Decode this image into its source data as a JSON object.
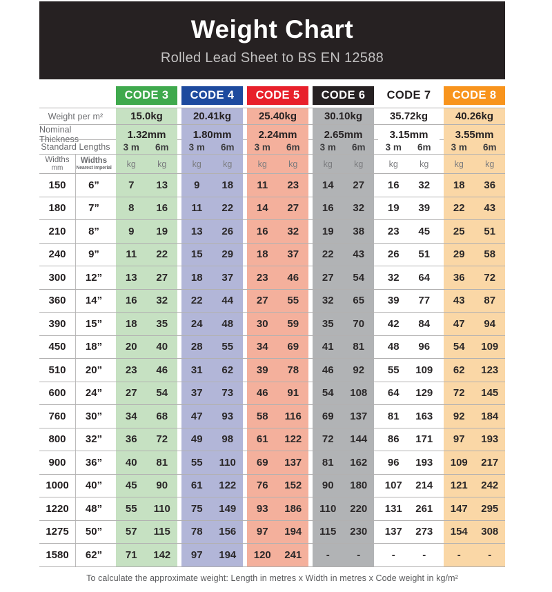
{
  "header": {
    "title": "Weight Chart",
    "subtitle": "Rolled Lead Sheet to BS EN 12588"
  },
  "labels": {
    "weight_per_m2": "Weight per m²",
    "nominal_thickness": "Nominal Thickness",
    "standard_lengths": "Standard Lengths",
    "widths_mm_line1": "Widths",
    "widths_mm_line2": "mm",
    "widths_imperial_line1": "Widths",
    "widths_imperial_line2": "Nearest Imperial",
    "kg_unit": "kg"
  },
  "footer": {
    "note": "To calculate the approximate weight: Length in metres x Width in metres x Code weight in kg/m²"
  },
  "chart_data": {
    "type": "table",
    "title": "Weight Chart",
    "subtitle": "Rolled Lead Sheet to BS EN 12588",
    "footnote": "To calculate the approximate weight: Length in metres x Width in metres x Code weight in kg/m²",
    "codes": [
      {
        "label": "CODE 3",
        "weight_per_m2": "15.0kg",
        "nominal_thickness": "1.32mm",
        "standard_lengths": [
          "3 m",
          "6m"
        ],
        "colors": {
          "header_bg": "#3fa94d",
          "header_text": "#ffffff",
          "body_bg": "#c6e1c2"
        }
      },
      {
        "label": "CODE 4",
        "weight_per_m2": "20.41kg",
        "nominal_thickness": "1.80mm",
        "standard_lengths": [
          "3 m",
          "6m"
        ],
        "colors": {
          "header_bg": "#1d4a9e",
          "header_text": "#ffffff",
          "body_bg": "#b2b6d8"
        }
      },
      {
        "label": "CODE 5",
        "weight_per_m2": "25.40kg",
        "nominal_thickness": "2.24mm",
        "standard_lengths": [
          "3 m",
          "6m"
        ],
        "colors": {
          "header_bg": "#e8202b",
          "header_text": "#ffffff",
          "body_bg": "#f4b09c"
        }
      },
      {
        "label": "CODE 6",
        "weight_per_m2": "30.10kg",
        "nominal_thickness": "2.65mm",
        "standard_lengths": [
          "3 m",
          "6m"
        ],
        "colors": {
          "header_bg": "#262122",
          "header_text": "#ffffff",
          "body_bg": "#b1b3b5"
        }
      },
      {
        "label": "CODE 7",
        "weight_per_m2": "35.72kg",
        "nominal_thickness": "3.15mm",
        "standard_lengths": [
          "3 m",
          "6m"
        ],
        "colors": {
          "header_bg": "#ffffff",
          "header_text": "#231f20",
          "body_bg": "#ffffff"
        }
      },
      {
        "label": "CODE 8",
        "weight_per_m2": "40.26kg",
        "nominal_thickness": "3.55mm",
        "standard_lengths": [
          "3 m",
          "6m"
        ],
        "colors": {
          "header_bg": "#f8941d",
          "header_text": "#ffffff",
          "body_bg": "#fad7a6"
        }
      }
    ],
    "rows": [
      {
        "width_mm": "150",
        "width_imperial": "6”",
        "kg": [
          [
            "7",
            "13"
          ],
          [
            "9",
            "18"
          ],
          [
            "11",
            "23"
          ],
          [
            "14",
            "27"
          ],
          [
            "16",
            "32"
          ],
          [
            "18",
            "36"
          ]
        ]
      },
      {
        "width_mm": "180",
        "width_imperial": "7”",
        "kg": [
          [
            "8",
            "16"
          ],
          [
            "11",
            "22"
          ],
          [
            "14",
            "27"
          ],
          [
            "16",
            "32"
          ],
          [
            "19",
            "39"
          ],
          [
            "22",
            "43"
          ]
        ]
      },
      {
        "width_mm": "210",
        "width_imperial": "8”",
        "kg": [
          [
            "9",
            "19"
          ],
          [
            "13",
            "26"
          ],
          [
            "16",
            "32"
          ],
          [
            "19",
            "38"
          ],
          [
            "23",
            "45"
          ],
          [
            "25",
            "51"
          ]
        ]
      },
      {
        "width_mm": "240",
        "width_imperial": "9”",
        "kg": [
          [
            "11",
            "22"
          ],
          [
            "15",
            "29"
          ],
          [
            "18",
            "37"
          ],
          [
            "22",
            "43"
          ],
          [
            "26",
            "51"
          ],
          [
            "29",
            "58"
          ]
        ]
      },
      {
        "width_mm": "300",
        "width_imperial": "12”",
        "kg": [
          [
            "13",
            "27"
          ],
          [
            "18",
            "37"
          ],
          [
            "23",
            "46"
          ],
          [
            "27",
            "54"
          ],
          [
            "32",
            "64"
          ],
          [
            "36",
            "72"
          ]
        ]
      },
      {
        "width_mm": "360",
        "width_imperial": "14”",
        "kg": [
          [
            "16",
            "32"
          ],
          [
            "22",
            "44"
          ],
          [
            "27",
            "55"
          ],
          [
            "32",
            "65"
          ],
          [
            "39",
            "77"
          ],
          [
            "43",
            "87"
          ]
        ]
      },
      {
        "width_mm": "390",
        "width_imperial": "15”",
        "kg": [
          [
            "18",
            "35"
          ],
          [
            "24",
            "48"
          ],
          [
            "30",
            "59"
          ],
          [
            "35",
            "70"
          ],
          [
            "42",
            "84"
          ],
          [
            "47",
            "94"
          ]
        ]
      },
      {
        "width_mm": "450",
        "width_imperial": "18”",
        "kg": [
          [
            "20",
            "40"
          ],
          [
            "28",
            "55"
          ],
          [
            "34",
            "69"
          ],
          [
            "41",
            "81"
          ],
          [
            "48",
            "96"
          ],
          [
            "54",
            "109"
          ]
        ]
      },
      {
        "width_mm": "510",
        "width_imperial": "20”",
        "kg": [
          [
            "23",
            "46"
          ],
          [
            "31",
            "62"
          ],
          [
            "39",
            "78"
          ],
          [
            "46",
            "92"
          ],
          [
            "55",
            "109"
          ],
          [
            "62",
            "123"
          ]
        ]
      },
      {
        "width_mm": "600",
        "width_imperial": "24”",
        "kg": [
          [
            "27",
            "54"
          ],
          [
            "37",
            "73"
          ],
          [
            "46",
            "91"
          ],
          [
            "54",
            "108"
          ],
          [
            "64",
            "129"
          ],
          [
            "72",
            "145"
          ]
        ]
      },
      {
        "width_mm": "760",
        "width_imperial": "30”",
        "kg": [
          [
            "34",
            "68"
          ],
          [
            "47",
            "93"
          ],
          [
            "58",
            "116"
          ],
          [
            "69",
            "137"
          ],
          [
            "81",
            "163"
          ],
          [
            "92",
            "184"
          ]
        ]
      },
      {
        "width_mm": "800",
        "width_imperial": "32”",
        "kg": [
          [
            "36",
            "72"
          ],
          [
            "49",
            "98"
          ],
          [
            "61",
            "122"
          ],
          [
            "72",
            "144"
          ],
          [
            "86",
            "171"
          ],
          [
            "97",
            "193"
          ]
        ]
      },
      {
        "width_mm": "900",
        "width_imperial": "36”",
        "kg": [
          [
            "40",
            "81"
          ],
          [
            "55",
            "110"
          ],
          [
            "69",
            "137"
          ],
          [
            "81",
            "162"
          ],
          [
            "96",
            "193"
          ],
          [
            "109",
            "217"
          ]
        ]
      },
      {
        "width_mm": "1000",
        "width_imperial": "40”",
        "kg": [
          [
            "45",
            "90"
          ],
          [
            "61",
            "122"
          ],
          [
            "76",
            "152"
          ],
          [
            "90",
            "180"
          ],
          [
            "107",
            "214"
          ],
          [
            "121",
            "242"
          ]
        ]
      },
      {
        "width_mm": "1220",
        "width_imperial": "48”",
        "kg": [
          [
            "55",
            "110"
          ],
          [
            "75",
            "149"
          ],
          [
            "93",
            "186"
          ],
          [
            "110",
            "220"
          ],
          [
            "131",
            "261"
          ],
          [
            "147",
            "295"
          ]
        ]
      },
      {
        "width_mm": "1275",
        "width_imperial": "50”",
        "kg": [
          [
            "57",
            "115"
          ],
          [
            "78",
            "156"
          ],
          [
            "97",
            "194"
          ],
          [
            "115",
            "230"
          ],
          [
            "137",
            "273"
          ],
          [
            "154",
            "308"
          ]
        ]
      },
      {
        "width_mm": "1580",
        "width_imperial": "62”",
        "kg": [
          [
            "71",
            "142"
          ],
          [
            "97",
            "194"
          ],
          [
            "120",
            "241"
          ],
          [
            "-",
            "-"
          ],
          [
            "-",
            "-"
          ],
          [
            "-",
            "-"
          ]
        ]
      }
    ]
  }
}
